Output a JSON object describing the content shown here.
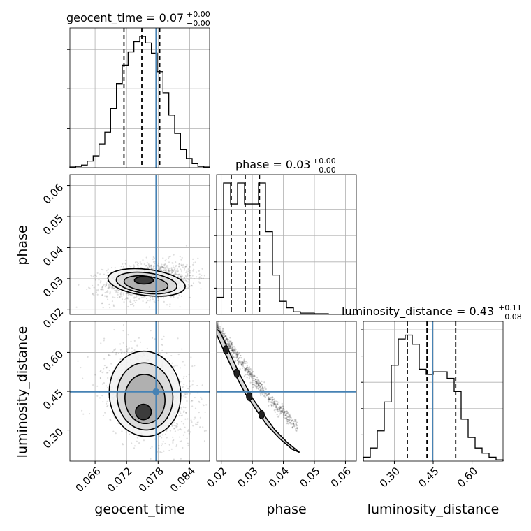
{
  "chart_data": {
    "type": "corner",
    "parameters": [
      "geocent_time",
      "phase",
      "luminosity_distance"
    ],
    "truths": {
      "geocent_time": 0.0776,
      "phase": null,
      "luminosity_distance": 0.4478
    },
    "truth_color": "#4682b4",
    "panels": {
      "geocent_time": {
        "title": {
          "main": "geocent_time = 0.07",
          "plus": "+0.00",
          "minus": "−0.00"
        },
        "range": [
          0.0612,
          0.0878
        ],
        "ticks": [
          0.066,
          0.072,
          0.078,
          0.084
        ],
        "tick_labels": [
          "0.066",
          "0.072",
          "0.078",
          "0.084"
        ],
        "quantiles": [
          0.0715,
          0.0749,
          0.0783
        ],
        "hist": [
          0.005,
          0.01,
          0.02,
          0.05,
          0.09,
          0.18,
          0.27,
          0.45,
          0.64,
          0.78,
          0.88,
          0.96,
          1.0,
          0.95,
          0.87,
          0.73,
          0.57,
          0.4,
          0.26,
          0.14,
          0.07,
          0.03,
          0.01,
          0.005
        ],
        "hist_yticks": [
          0.3,
          0.6,
          0.9
        ]
      },
      "phase": {
        "title": {
          "main": "phase = 0.03",
          "plus": "+0.00",
          "minus": "−0.00"
        },
        "range": [
          0.0185,
          0.0635
        ],
        "ticks": [
          0.02,
          0.03,
          0.04,
          0.05,
          0.06
        ],
        "tick_labels": [
          "0.02",
          "0.03",
          "0.04",
          "0.05",
          "0.06"
        ],
        "quantiles": [
          0.0232,
          0.0277,
          0.0323
        ],
        "hist": [
          0.13,
          1.0,
          0.84,
          1.0,
          0.84,
          0.84,
          1.0,
          0.63,
          0.3,
          0.1,
          0.05,
          0.02,
          0.01,
          0.01,
          0.005,
          0.005,
          0.002,
          0.002,
          0.001,
          0.001
        ],
        "hist_yticks": [
          0.2,
          0.4,
          0.6,
          0.8
        ]
      },
      "luminosity_distance": {
        "title": {
          "main": "luminosity_distance = 0.43",
          "plus": "+0.11",
          "minus": "−0.08"
        },
        "range": [
          0.18,
          0.72
        ],
        "ticks": [
          0.3,
          0.45,
          0.6
        ],
        "tick_labels": [
          "0.30",
          "0.45",
          "0.60"
        ],
        "quantiles": [
          0.35,
          0.426,
          0.537
        ],
        "hist": [
          0.03,
          0.1,
          0.23,
          0.45,
          0.73,
          0.93,
          0.96,
          0.89,
          0.7,
          0.66,
          0.68,
          0.68,
          0.63,
          0.53,
          0.32,
          0.18,
          0.1,
          0.06,
          0.03,
          0.01
        ],
        "hist_yticks": [
          0.2,
          0.4,
          0.6,
          0.8,
          1.0
        ]
      }
    },
    "lower_panels": [
      {
        "x": "geocent_time",
        "y": "phase",
        "yticks": [
          0.02,
          0.03,
          0.04,
          0.05,
          0.06
        ],
        "ytick_labels": [
          "0.02",
          "0.03",
          "0.04",
          "0.05",
          "0.06"
        ],
        "yrange": [
          0.0185,
          0.0635
        ],
        "scatter": {
          "mean": [
            0.0763,
            0.0292
          ],
          "sd": [
            0.0043,
            0.0031
          ],
          "rho": 0.2
        },
        "contours": [
          {
            "cx": 0.0758,
            "cy": 0.0288,
            "rx": 0.0074,
            "ry": 0.0042,
            "rot": 0.12
          },
          {
            "cx": 0.0758,
            "cy": 0.0286,
            "rx": 0.0058,
            "ry": 0.0033,
            "rot": 0.12
          },
          {
            "cx": 0.0757,
            "cy": 0.0284,
            "rx": 0.0042,
            "ry": 0.0024,
            "rot": 0.12
          },
          {
            "cx": 0.0753,
            "cy": 0.0295,
            "rx": 0.0018,
            "ry": 0.0012,
            "rot": 0.0
          }
        ]
      },
      {
        "x": "geocent_time",
        "y": "luminosity_distance",
        "yticks": [
          0.3,
          0.45,
          0.6
        ],
        "ytick_labels": [
          "0.30",
          "0.45",
          "0.60"
        ],
        "yrange": [
          0.18,
          0.72
        ],
        "scatter": {
          "mean": [
            0.0762,
            0.44
          ],
          "sd": [
            0.0042,
            0.09
          ],
          "rho": -0.3
        },
        "contours": [
          {
            "cx": 0.0755,
            "cy": 0.44,
            "rx": 0.0068,
            "ry": 0.165,
            "rot": -0.1
          },
          {
            "cx": 0.0755,
            "cy": 0.43,
            "rx": 0.0053,
            "ry": 0.13,
            "rot": -0.1
          },
          {
            "cx": 0.0755,
            "cy": 0.42,
            "rx": 0.0038,
            "ry": 0.095,
            "rot": -0.1
          },
          {
            "cx": 0.0752,
            "cy": 0.37,
            "rx": 0.0015,
            "ry": 0.03,
            "rot": 0.0
          }
        ]
      },
      {
        "x": "phase",
        "y": "luminosity_distance",
        "yrange": [
          0.18,
          0.72
        ],
        "scatter": {
          "curve": true
        },
        "band": [
          [
            0.0185,
            0.69
          ],
          [
            0.0215,
            0.61
          ],
          [
            0.025,
            0.52
          ],
          [
            0.029,
            0.43
          ],
          [
            0.033,
            0.36
          ],
          [
            0.036,
            0.31
          ],
          [
            0.04,
            0.26
          ],
          [
            0.044,
            0.22
          ]
        ]
      }
    ],
    "axis_labels": {
      "geocent_time": "geocent_time",
      "phase": "phase",
      "luminosity_distance": "luminosity_distance"
    }
  }
}
